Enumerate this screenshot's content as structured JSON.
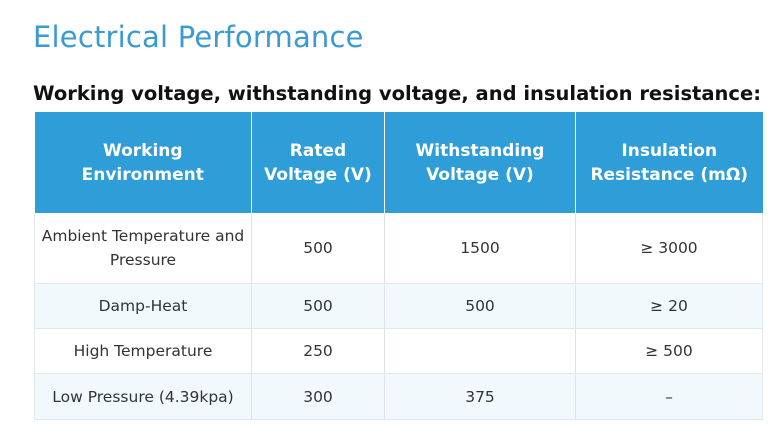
{
  "page": {
    "title": "Electrical Performance",
    "subtitle": "Working voltage, withstanding voltage, and insulation resistance:"
  },
  "table": {
    "headers": [
      "Working Environment",
      "Rated Voltage (V)",
      "Withstanding Voltage (V)",
      "Insulation Resistance (mΩ)"
    ],
    "rows": [
      [
        "Ambient Temperature and Pressure",
        "500",
        "1500",
        "≥ 3000"
      ],
      [
        "Damp-Heat",
        "500",
        "500",
        "≥ 20"
      ],
      [
        "High Temperature",
        "250",
        "",
        "≥ 500"
      ],
      [
        "Low Pressure (4.39kpa)",
        "300",
        "375",
        "–"
      ]
    ]
  },
  "colors": {
    "title": "#3a9ad2",
    "header_bg": "#2f9ed8",
    "alt_row_bg": "#f2f9fc"
  }
}
